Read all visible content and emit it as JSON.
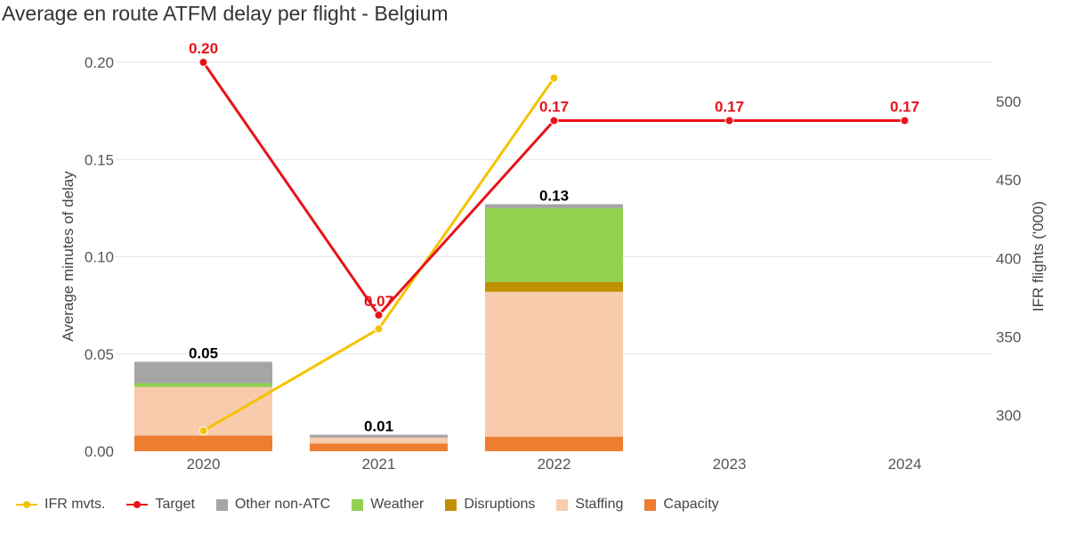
{
  "title": "Average en route ATFM delay per flight - Belgium",
  "chart_data": {
    "type": "bar",
    "categories": [
      "2020",
      "2021",
      "2022",
      "2023",
      "2024"
    ],
    "ylabel": "Average minutes of delay",
    "y2label": "IFR flights ('000)",
    "ylim": [
      0,
      0.2
    ],
    "y_ticks": [
      "0.00",
      "0.05",
      "0.10",
      "0.15",
      "0.20"
    ],
    "y2lim": [
      277,
      525
    ],
    "y2_ticks": [
      "300",
      "350",
      "400",
      "450",
      "500"
    ],
    "stacked_series": [
      {
        "name": "Capacity",
        "color": "#ED7D31",
        "values": [
          0.008,
          0.004,
          0.0075,
          null,
          null
        ]
      },
      {
        "name": "Staffing",
        "color": "#F8CBAD",
        "values": [
          0.025,
          0.003,
          0.0745,
          null,
          null
        ]
      },
      {
        "name": "Disruptions",
        "color": "#BF9000",
        "values": [
          0.0,
          0.0,
          0.005,
          null,
          null
        ]
      },
      {
        "name": "Weather",
        "color": "#92D050",
        "values": [
          0.002,
          0.0,
          0.038,
          null,
          null
        ]
      },
      {
        "name": "Other non-ATC",
        "color": "#A5A5A5",
        "values": [
          0.011,
          0.0015,
          0.002,
          null,
          null
        ]
      }
    ],
    "bar_totals": [
      "0.05",
      "0.01",
      "0.13",
      null,
      null
    ],
    "target": {
      "name": "Target",
      "color": "#E8121A",
      "values": [
        0.2,
        0.07,
        0.17,
        0.17,
        0.17
      ],
      "labels": [
        "0.20",
        "0.07",
        "0.17",
        "0.17",
        "0.17"
      ]
    },
    "ifr_mvts": {
      "name": "IFR mvts.",
      "color": "#F5C200",
      "axis": "right",
      "values": [
        290,
        355,
        515,
        null,
        null
      ]
    },
    "legend": [
      "IFR mvts.",
      "Target",
      "Other non-ATC",
      "Weather",
      "Disruptions",
      "Staffing",
      "Capacity"
    ],
    "legend_position": "bottom-left",
    "grid": true
  }
}
